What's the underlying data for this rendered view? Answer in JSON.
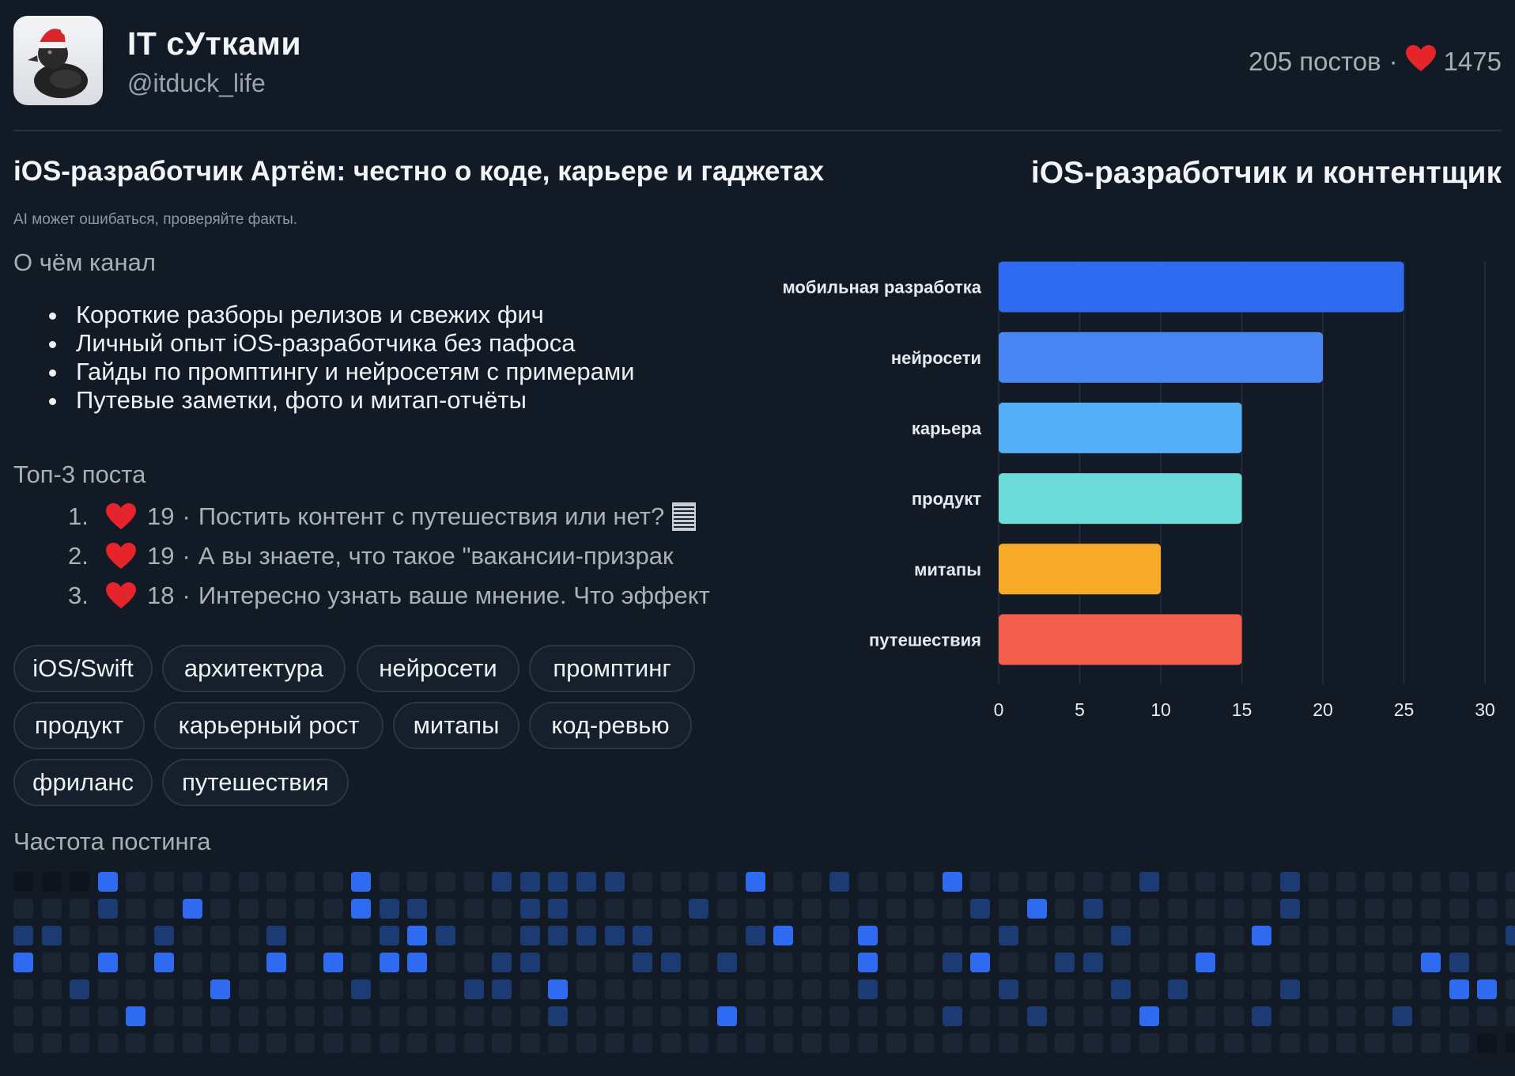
{
  "header": {
    "channel_name": "IT сУтками",
    "handle": "@itduck_life",
    "posts": "205 постов",
    "dot": "·",
    "likes": "1475",
    "avatar_icon": "rubber-duck-santa-hat-icon"
  },
  "left_title": "iOS-разработчик Артём: честно о коде, карьере и гаджетах",
  "right_title": "iOS-разработчик и контентщик",
  "disclaimer": "AI может ошибаться, проверяйте факты.",
  "about": {
    "label": "О чём канал",
    "items": [
      "Короткие разборы релизов и свежих фич",
      "Личный опыт iOS-разработчика без пафоса",
      "Гайды по промптингу и нейросетям с примерами",
      "Путевые заметки, фото и митап-отчёты"
    ]
  },
  "top_posts": {
    "label": "Топ-3 поста",
    "items": [
      {
        "num": "1.",
        "count": "19",
        "sep": "·",
        "text": "Постить контент с путешествия или нет?"
      },
      {
        "num": "2.",
        "count": "19",
        "sep": "·",
        "text": "А вы знаете, что такое \"вакансии-призрак"
      },
      {
        "num": "3.",
        "count": "18",
        "sep": "·",
        "text": "Интересно узнать ваше мнение. Что эффект"
      }
    ]
  },
  "tags": [
    "iOS/Swift",
    "архитектура",
    "нейросети",
    "промптинг",
    "продукт",
    "карьерный рост",
    "митапы",
    "код-ревью",
    "фриланс",
    "путешествия"
  ],
  "heatmap": {
    "label": "Частота постинга",
    "rows": [
      "0003111111113111122222111131121113111111211112111111112",
      "1112113111113221112211112111111111213121111112111111111",
      "2211121112111232112222211123113111121112111131111111123",
      "3113131113131331122111221211113112311221113111111132111",
      "1121111311112111221311111111112111121112121112111113312",
      "1111311111111111111211111311111112112111311121111211111",
      "1111111111111111111111111111111111111111111111111111000"
    ],
    "colors": [
      "#0d141e",
      "#1c2533",
      "#1d3b73",
      "#2f6bf0"
    ]
  },
  "chart_data": {
    "type": "bar",
    "orientation": "horizontal",
    "categories": [
      "мобильная разработка",
      "нейросети",
      "карьера",
      "продукт",
      "митапы",
      "путешествия"
    ],
    "values": [
      25,
      20,
      15,
      15,
      10,
      15
    ],
    "colors": [
      "#2f6bf0",
      "#4a86f3",
      "#54aef8",
      "#6ddcd8",
      "#f7a928",
      "#f35f4c"
    ],
    "xlim": [
      0,
      30
    ],
    "xticks": [
      "0",
      "5",
      "10",
      "15",
      "20",
      "25",
      "30"
    ],
    "grid": true
  }
}
